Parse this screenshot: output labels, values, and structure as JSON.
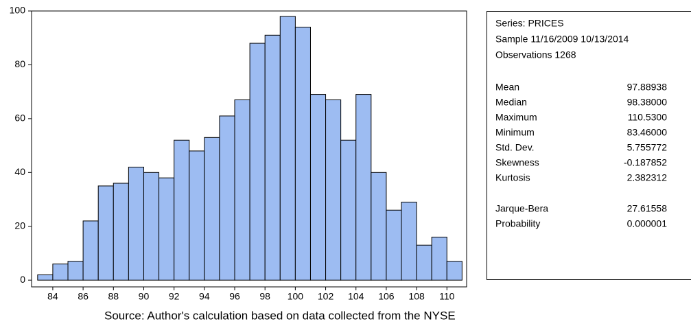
{
  "chart_data": {
    "type": "histogram",
    "bins": [
      83,
      84,
      85,
      86,
      87,
      88,
      89,
      90,
      91,
      92,
      93,
      94,
      95,
      96,
      97,
      98,
      99,
      100,
      101,
      102,
      103,
      104,
      105,
      106,
      107,
      108,
      109,
      110,
      111
    ],
    "counts": [
      2,
      6,
      7,
      22,
      35,
      36,
      42,
      40,
      38,
      52,
      48,
      53,
      61,
      67,
      88,
      91,
      98,
      94,
      69,
      67,
      52,
      69,
      40,
      26,
      29,
      13,
      16,
      7
    ],
    "color": "#9dbcf2",
    "xlim": [
      82.6,
      111.3
    ],
    "xticks": [
      84,
      86,
      88,
      90,
      92,
      94,
      96,
      98,
      100,
      102,
      104,
      106,
      108,
      110
    ],
    "ylim": [
      -2.5,
      100
    ],
    "yticks": [
      0,
      20,
      40,
      60,
      80,
      100
    ],
    "stats": {
      "header": [
        "Series: PRICES",
        "Sample 11/16/2009 10/13/2014",
        "Observations 1268"
      ],
      "rows": [
        [
          "Mean",
          "97.88938"
        ],
        [
          "Median",
          "98.38000"
        ],
        [
          "Maximum",
          "110.5300"
        ],
        [
          "Minimum",
          "83.46000"
        ],
        [
          "Std. Dev.",
          "5.755772"
        ],
        [
          "Skewness",
          "-0.187852"
        ],
        [
          "Kurtosis",
          "2.382312"
        ]
      ],
      "tests": [
        [
          "Jarque-Bera",
          "27.61558"
        ],
        [
          "Probability",
          "0.000001"
        ]
      ]
    },
    "source": "Source: Author's calculation based on data collected from the NYSE"
  }
}
